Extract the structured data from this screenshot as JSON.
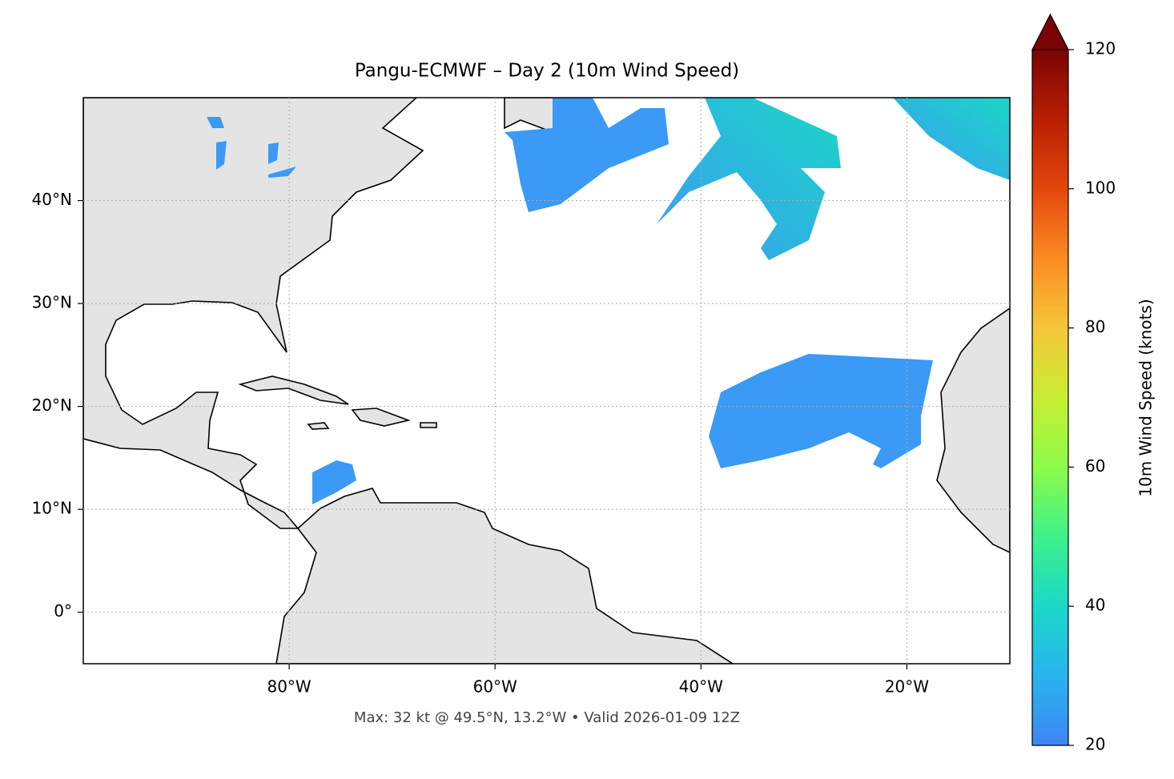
{
  "chart_data": {
    "type": "map",
    "title": "Pangu-ECMWF – Day 2 (10m Wind Speed)",
    "footer": "Max: 32 kt @ 49.5°N, 13.2°W • Valid 2026-01-09 12Z",
    "xlim": [
      -100,
      -10
    ],
    "ylim": [
      -5,
      50
    ],
    "xticks": [
      {
        "value": -80,
        "label": "80°W"
      },
      {
        "value": -60,
        "label": "60°W"
      },
      {
        "value": -40,
        "label": "40°W"
      },
      {
        "value": -20,
        "label": "20°W"
      }
    ],
    "yticks": [
      {
        "value": 0,
        "label": "0°"
      },
      {
        "value": 10,
        "label": "10°N"
      },
      {
        "value": 20,
        "label": "20°N"
      },
      {
        "value": 30,
        "label": "30°N"
      },
      {
        "value": 40,
        "label": "40°N"
      }
    ],
    "grid": true,
    "colorbar": {
      "label": "10m Wind Speed (knots)",
      "lim": [
        20,
        120
      ],
      "ticks": [
        20,
        40,
        60,
        80,
        100,
        120
      ]
    }
  }
}
